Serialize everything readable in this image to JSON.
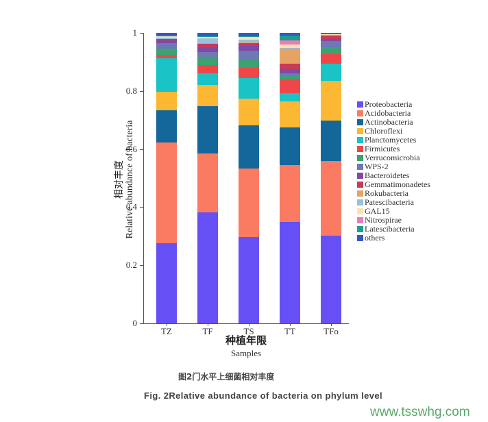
{
  "chart_data": {
    "type": "bar",
    "stacked": true,
    "title": "",
    "xlabel": "种植年限 Samples",
    "xlabel_cn": "种植年限",
    "xlabel_en": "Samples",
    "ylabel": "相对丰度 Relative abundance of bacteria",
    "ylabel_cn": "相对丰度",
    "ylabel_en": "Relative abundance of bacteria",
    "ylim": [
      0,
      1
    ],
    "yticks": [
      "0",
      "0.2",
      "0.4",
      "0.6",
      "0.8",
      "1"
    ],
    "grid": false,
    "legend_position": "right",
    "categories": [
      "TZ",
      "TF",
      "TS",
      "TT",
      "TFo"
    ],
    "series": [
      {
        "name": "Proteobacteria",
        "color": "#6650f5",
        "values": [
          0.276,
          0.382,
          0.298,
          0.348,
          0.303
        ]
      },
      {
        "name": "Acidobacteria",
        "color": "#fa7a62",
        "values": [
          0.349,
          0.203,
          0.234,
          0.198,
          0.257
        ]
      },
      {
        "name": "Actinobacteria",
        "color": "#14679a",
        "values": [
          0.111,
          0.163,
          0.15,
          0.129,
          0.138
        ]
      },
      {
        "name": "Chloroflexi",
        "color": "#fcb833",
        "values": [
          0.064,
          0.072,
          0.091,
          0.09,
          0.137
        ]
      },
      {
        "name": "Planctomycetes",
        "color": "#19c3c6",
        "values": [
          0.117,
          0.042,
          0.072,
          0.028,
          0.058
        ]
      },
      {
        "name": "Firmicutes",
        "color": "#ef4749",
        "values": [
          0.012,
          0.028,
          0.035,
          0.047,
          0.035
        ]
      },
      {
        "name": "Verrucomicrobia",
        "color": "#3da272",
        "values": [
          0.02,
          0.025,
          0.03,
          0.015,
          0.022
        ]
      },
      {
        "name": "WPS-2",
        "color": "#6d78b4",
        "values": [
          0.02,
          0.02,
          0.03,
          0.007,
          0.022
        ]
      },
      {
        "name": "Bacteroidetes",
        "color": "#7f4aa7",
        "values": [
          0.008,
          0.015,
          0.015,
          0.013,
          0.006
        ]
      },
      {
        "name": "Gemmatimonadetes",
        "color": "#c63a5a",
        "values": [
          0.005,
          0.012,
          0.01,
          0.018,
          0.012
        ]
      },
      {
        "name": "Rokubacteria",
        "color": "#e6a363",
        "values": [
          0.002,
          0.002,
          0.002,
          0.052,
          0.002
        ]
      },
      {
        "name": "Patescibacteria",
        "color": "#9ac0e0",
        "values": [
          0.004,
          0.018,
          0.01,
          0.003,
          0.002
        ]
      },
      {
        "name": "GAL15",
        "color": "#fde2b0",
        "values": [
          0.004,
          0.004,
          0.008,
          0.012,
          0.001
        ]
      },
      {
        "name": "Nitrospirae",
        "color": "#ea7cb7",
        "values": [
          0.001,
          0.001,
          0.002,
          0.015,
          0.001
        ]
      },
      {
        "name": "Latescibacteria",
        "color": "#1aa08e",
        "values": [
          0.001,
          0.001,
          0.001,
          0.015,
          0.002
        ]
      },
      {
        "name": "others",
        "color": "#3a55c8",
        "values": [
          0.01,
          0.012,
          0.012,
          0.01,
          0.002
        ]
      }
    ]
  },
  "caption": {
    "cn": "图2门水平上细菌相对丰度",
    "en": "Fig. 2Relative abundance of bacteria on phylum level"
  },
  "watermark": "www.tsswhg.com"
}
